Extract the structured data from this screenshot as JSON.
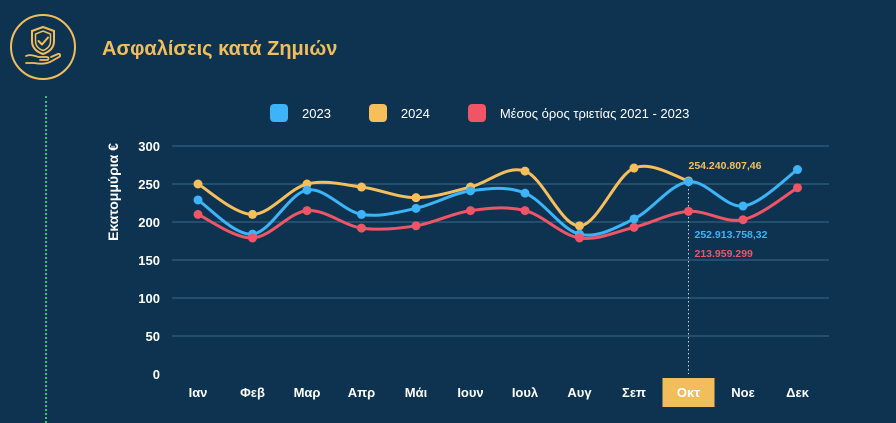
{
  "header": {
    "title": "Ασφαλίσεις κατά Ζημιών",
    "logo_icon": "shield-check-hand-icon"
  },
  "colors": {
    "background": "#0e3350",
    "accent": "#f2be5c",
    "series_2023": "#3db4f7",
    "series_2024": "#f7bf5c",
    "series_avg": "#ee5567",
    "highlight_tick_bg": "#f2be5c"
  },
  "chart_data": {
    "type": "line",
    "ylabel": "Εκατομμύρια €",
    "xlabel": "",
    "ylim": [
      0,
      300
    ],
    "yticks": [
      0,
      50,
      100,
      150,
      200,
      250,
      300
    ],
    "grid": true,
    "legend_position": "top",
    "categories": [
      "Ιαν",
      "Φεβ",
      "Μαρ",
      "Απρ",
      "Μάι",
      "Ιουν",
      "Ιουλ",
      "Αυγ",
      "Σεπ",
      "Οκτ",
      "Νοε",
      "Δεκ"
    ],
    "highlighted_category": "Οκτ",
    "series": [
      {
        "name": "2023",
        "color": "#3db4f7",
        "values": [
          229,
          184,
          242,
          210,
          218,
          241,
          238,
          184,
          204,
          253,
          221,
          269
        ]
      },
      {
        "name": "2024",
        "color": "#f7bf5c",
        "values": [
          250,
          210,
          250,
          246,
          232,
          246,
          267,
          195,
          271,
          254,
          null,
          null
        ]
      },
      {
        "name": "Μέσος όρος τριετίας 2021 - 2023",
        "color": "#ee5567",
        "values": [
          210,
          179,
          215,
          192,
          195,
          215,
          215,
          179,
          193,
          214,
          203,
          245
        ]
      }
    ],
    "annotations": [
      {
        "text": "254.240.807,46",
        "series": "2024",
        "category": "Οκτ",
        "color": "#f7bf5c"
      },
      {
        "text": "252.913.758,32",
        "series": "2023",
        "category": "Οκτ",
        "color": "#3db4f7"
      },
      {
        "text": "213.959.299",
        "series": "Μέσος όρος τριετίας 2021 - 2023",
        "category": "Οκτ",
        "color": "#ee5567"
      }
    ]
  }
}
